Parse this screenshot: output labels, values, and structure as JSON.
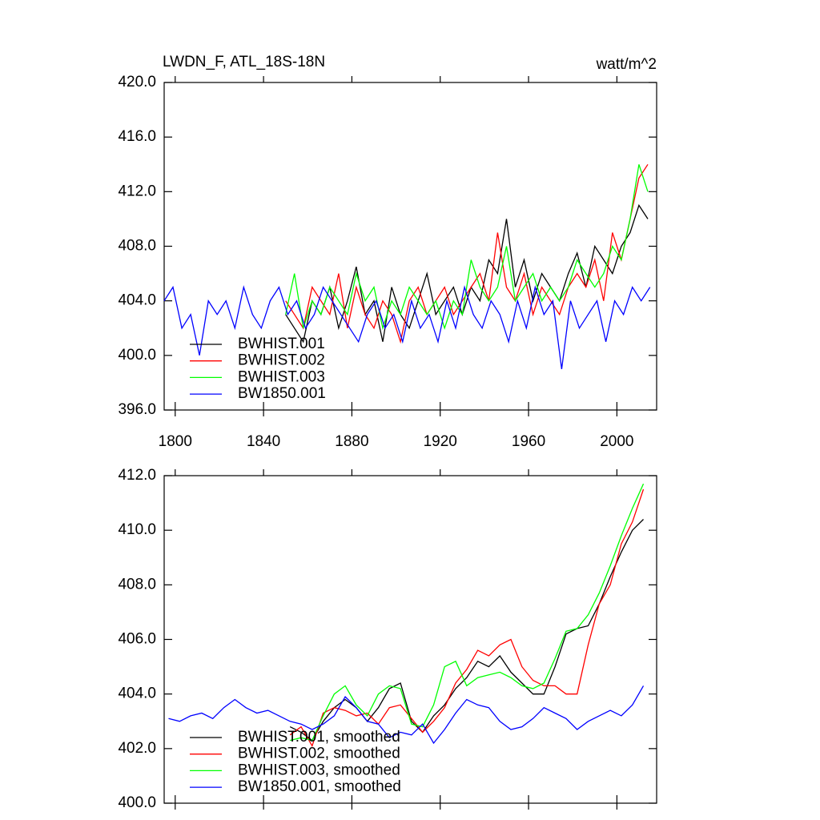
{
  "chart_data": [
    {
      "type": "line",
      "title": "LWDN_F, ATL_18S-18N",
      "units_label": "watt/m^2",
      "xlim": [
        1795,
        2018
      ],
      "ylim": [
        396,
        420
      ],
      "xticks": [
        1800,
        1840,
        1880,
        1920,
        1960,
        2000
      ],
      "yticks": [
        {
          "value": 396,
          "label": "396.0"
        },
        {
          "value": 400,
          "label": "400.0"
        },
        {
          "value": 404,
          "label": "404.0"
        },
        {
          "value": 408,
          "label": "408.0"
        },
        {
          "value": 412,
          "label": "412.0"
        },
        {
          "value": 416,
          "label": "416.0"
        },
        {
          "value": 420,
          "label": "420.0"
        }
      ],
      "show_xtick_labels": true,
      "legend": "lower-left",
      "series": [
        {
          "name": "BWHIST.001",
          "color": "#000000",
          "x": [
            1850,
            1854,
            1858,
            1862,
            1866,
            1870,
            1874,
            1878,
            1882,
            1886,
            1890,
            1894,
            1898,
            1902,
            1906,
            1910,
            1914,
            1918,
            1922,
            1926,
            1930,
            1934,
            1938,
            1942,
            1946,
            1950,
            1954,
            1958,
            1962,
            1966,
            1970,
            1974,
            1978,
            1982,
            1986,
            1990,
            1994,
            1998,
            2002,
            2006,
            2010,
            2014
          ],
          "values": [
            403,
            402,
            401,
            404,
            403,
            405,
            402,
            404,
            406.5,
            403,
            404,
            401,
            405,
            403,
            402,
            404,
            406,
            403,
            404,
            405,
            403,
            405,
            404,
            407,
            406,
            410,
            405,
            407,
            404,
            406,
            405,
            404,
            406,
            407.5,
            405,
            408,
            407,
            406,
            408,
            409,
            411,
            410
          ]
        },
        {
          "name": "BWHIST.002",
          "color": "#ff0000",
          "x": [
            1850,
            1854,
            1858,
            1862,
            1866,
            1870,
            1874,
            1878,
            1882,
            1886,
            1890,
            1894,
            1898,
            1902,
            1906,
            1910,
            1914,
            1918,
            1922,
            1926,
            1930,
            1934,
            1938,
            1942,
            1946,
            1950,
            1954,
            1958,
            1962,
            1966,
            1970,
            1974,
            1978,
            1982,
            1986,
            1990,
            1994,
            1998,
            2002,
            2006,
            2010,
            2014
          ],
          "values": [
            404,
            403,
            402,
            405,
            404,
            403,
            406,
            402,
            405,
            403,
            402,
            404,
            403,
            401,
            404,
            405,
            403,
            404,
            405,
            403,
            404,
            405,
            406,
            404,
            409,
            405,
            404,
            406,
            403,
            405,
            404,
            403,
            405,
            406,
            405,
            407,
            404,
            409,
            407,
            410,
            413,
            414
          ]
        },
        {
          "name": "BWHIST.003",
          "color": "#00ff00",
          "x": [
            1850,
            1854,
            1858,
            1862,
            1866,
            1870,
            1874,
            1878,
            1882,
            1886,
            1890,
            1894,
            1898,
            1902,
            1906,
            1910,
            1914,
            1918,
            1922,
            1926,
            1930,
            1934,
            1938,
            1942,
            1946,
            1950,
            1954,
            1958,
            1962,
            1966,
            1970,
            1974,
            1978,
            1982,
            1986,
            1990,
            1994,
            1998,
            2002,
            2006,
            2010,
            2014
          ],
          "values": [
            403,
            406,
            402,
            404,
            403,
            405,
            404,
            403,
            406,
            404,
            405,
            402,
            404,
            403,
            405,
            404,
            403,
            404,
            402,
            404,
            403,
            407,
            405,
            404,
            405,
            408,
            404,
            405,
            406,
            404,
            405,
            404,
            405,
            407,
            406,
            405,
            406,
            408,
            407,
            410,
            414,
            412
          ]
        },
        {
          "name": "BW1850.001",
          "color": "#0000ff",
          "x": [
            1795,
            1799,
            1803,
            1807,
            1811,
            1815,
            1819,
            1823,
            1827,
            1831,
            1835,
            1839,
            1843,
            1847,
            1851,
            1855,
            1859,
            1863,
            1867,
            1871,
            1875,
            1879,
            1883,
            1887,
            1891,
            1895,
            1899,
            1903,
            1907,
            1911,
            1915,
            1919,
            1923,
            1927,
            1931,
            1935,
            1939,
            1943,
            1947,
            1951,
            1955,
            1959,
            1963,
            1967,
            1971,
            1975,
            1979,
            1983,
            1987,
            1991,
            1995,
            1999,
            2003,
            2007,
            2011,
            2015
          ],
          "values": [
            404,
            405,
            402,
            403,
            400,
            404,
            403,
            404,
            402,
            405,
            403,
            402,
            404,
            405,
            403,
            404,
            402,
            403,
            405,
            404,
            403,
            402,
            401,
            403,
            404,
            402,
            403,
            401,
            404,
            402,
            403,
            401,
            404,
            402,
            405,
            403,
            402,
            404,
            403,
            401,
            404,
            402,
            405,
            403,
            404,
            399,
            404,
            402,
            403,
            404,
            401,
            404,
            403,
            405,
            404,
            405
          ]
        }
      ]
    },
    {
      "type": "line",
      "xlim": [
        1795,
        2018
      ],
      "ylim": [
        400,
        412
      ],
      "xticks": [
        1800,
        1840,
        1880,
        1920,
        1960,
        2000
      ],
      "yticks": [
        {
          "value": 400,
          "label": "400.0"
        },
        {
          "value": 402,
          "label": "402.0"
        },
        {
          "value": 404,
          "label": "404.0"
        },
        {
          "value": 406,
          "label": "406.0"
        },
        {
          "value": 408,
          "label": "408.0"
        },
        {
          "value": 410,
          "label": "410.0"
        },
        {
          "value": 412,
          "label": "412.0"
        }
      ],
      "show_xtick_labels": false,
      "legend": "lower-left",
      "series": [
        {
          "name": "BWHIST.001, smoothed",
          "color": "#000000",
          "x": [
            1852,
            1857,
            1862,
            1867,
            1872,
            1877,
            1882,
            1887,
            1892,
            1897,
            1902,
            1907,
            1912,
            1917,
            1922,
            1927,
            1932,
            1937,
            1942,
            1947,
            1952,
            1957,
            1962,
            1967,
            1972,
            1977,
            1982,
            1987,
            1992,
            1997,
            2002,
            2007,
            2012
          ],
          "values": [
            402.8,
            402.6,
            402.3,
            403.0,
            403.5,
            403.8,
            403.5,
            403.0,
            403.5,
            404.2,
            404.4,
            403.0,
            402.6,
            403.2,
            403.6,
            404.2,
            404.6,
            405.2,
            405.0,
            405.4,
            404.8,
            404.4,
            404.0,
            404.0,
            405.0,
            406.2,
            406.4,
            406.5,
            407.3,
            408.3,
            409.2,
            410.0,
            410.4
          ]
        },
        {
          "name": "BWHIST.002, smoothed",
          "color": "#ff0000",
          "x": [
            1852,
            1857,
            1862,
            1867,
            1872,
            1877,
            1882,
            1887,
            1892,
            1897,
            1902,
            1907,
            1912,
            1917,
            1922,
            1927,
            1932,
            1937,
            1942,
            1947,
            1952,
            1957,
            1962,
            1967,
            1972,
            1977,
            1982,
            1987,
            1992,
            1997,
            2002,
            2007,
            2012
          ],
          "values": [
            402.5,
            402.8,
            402.1,
            403.3,
            403.5,
            403.4,
            403.2,
            403.3,
            402.9,
            403.5,
            403.6,
            403.1,
            402.6,
            403.0,
            403.5,
            404.4,
            404.9,
            405.6,
            405.4,
            405.8,
            406.0,
            405.0,
            404.5,
            404.3,
            404.3,
            404.0,
            404.0,
            405.8,
            407.3,
            408.0,
            409.5,
            410.3,
            411.5
          ]
        },
        {
          "name": "BWHIST.003, smoothed",
          "color": "#00ff00",
          "x": [
            1852,
            1857,
            1862,
            1867,
            1872,
            1877,
            1882,
            1887,
            1892,
            1897,
            1902,
            1907,
            1912,
            1917,
            1922,
            1927,
            1932,
            1937,
            1942,
            1947,
            1952,
            1957,
            1962,
            1967,
            1972,
            1977,
            1982,
            1987,
            1992,
            1997,
            2002,
            2007,
            2012
          ],
          "values": [
            402.3,
            402.4,
            402.3,
            403.2,
            404.0,
            404.3,
            403.6,
            403.2,
            404.0,
            404.3,
            404.2,
            402.9,
            402.8,
            403.6,
            405.0,
            405.2,
            404.3,
            404.6,
            404.7,
            404.8,
            404.6,
            404.3,
            404.2,
            404.4,
            405.3,
            406.3,
            406.4,
            406.9,
            407.7,
            408.7,
            409.8,
            410.8,
            411.7
          ]
        },
        {
          "name": "BW1850.001, smoothed",
          "color": "#0000ff",
          "x": [
            1797,
            1802,
            1807,
            1812,
            1817,
            1822,
            1827,
            1832,
            1837,
            1842,
            1847,
            1852,
            1857,
            1862,
            1867,
            1872,
            1877,
            1882,
            1887,
            1892,
            1897,
            1902,
            1907,
            1912,
            1917,
            1922,
            1927,
            1932,
            1937,
            1942,
            1947,
            1952,
            1957,
            1962,
            1967,
            1972,
            1977,
            1982,
            1987,
            1992,
            1997,
            2002,
            2007,
            2012
          ],
          "values": [
            403.1,
            403.0,
            403.2,
            403.3,
            403.1,
            403.5,
            403.8,
            403.5,
            403.3,
            403.4,
            403.2,
            403.0,
            402.9,
            402.7,
            402.9,
            403.2,
            403.9,
            403.5,
            403.0,
            402.9,
            402.4,
            402.6,
            402.5,
            402.9,
            402.2,
            402.7,
            403.3,
            403.8,
            403.6,
            403.5,
            403.0,
            402.7,
            402.8,
            403.1,
            403.5,
            403.3,
            403.1,
            402.7,
            403.0,
            403.2,
            403.4,
            403.2,
            403.6,
            404.3
          ]
        }
      ]
    }
  ]
}
